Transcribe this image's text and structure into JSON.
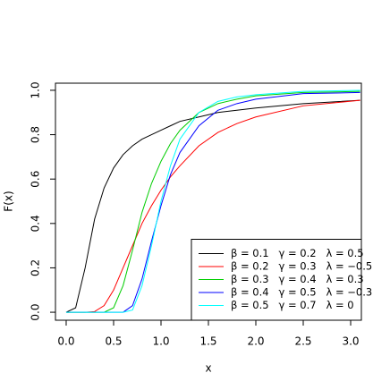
{
  "chart_data": {
    "type": "line",
    "x_label": "x",
    "y_label": "F(x)",
    "x": [
      0,
      0.1,
      0.2,
      0.3,
      0.4,
      0.5,
      0.6,
      0.7,
      0.8,
      0.9,
      1.0,
      1.1,
      1.2,
      1.4,
      1.6,
      1.8,
      2.0,
      2.5,
      3.1
    ],
    "series": [
      {
        "name": "β = 0.1   γ = 0.2   λ = 0.5",
        "color": "#000000",
        "values": [
          0,
          0.02,
          0.2,
          0.42,
          0.56,
          0.65,
          0.71,
          0.75,
          0.78,
          0.8,
          0.82,
          0.84,
          0.86,
          0.88,
          0.9,
          0.91,
          0.92,
          0.94,
          0.955
        ]
      },
      {
        "name": "β = 0.2   γ = 0.3   λ = −0.5",
        "color": "#ff0000",
        "values": [
          0,
          0,
          0,
          0.003,
          0.03,
          0.1,
          0.2,
          0.3,
          0.4,
          0.48,
          0.55,
          0.61,
          0.66,
          0.75,
          0.81,
          0.85,
          0.88,
          0.93,
          0.955
        ]
      },
      {
        "name": "β = 0.3   γ = 0.4   λ = 0.3",
        "color": "#00cd00",
        "values": [
          0,
          0,
          0,
          0,
          0,
          0.02,
          0.12,
          0.28,
          0.45,
          0.58,
          0.68,
          0.76,
          0.82,
          0.9,
          0.94,
          0.96,
          0.975,
          0.99,
          0.995
        ]
      },
      {
        "name": "β = 0.4   γ = 0.5   λ = −0.3",
        "color": "#0000ff",
        "values": [
          0,
          0,
          0,
          0,
          0,
          0,
          0,
          0.03,
          0.15,
          0.32,
          0.48,
          0.62,
          0.72,
          0.84,
          0.91,
          0.94,
          0.96,
          0.985,
          0.99
        ]
      },
      {
        "name": "β = 0.5   γ = 0.7   λ = 0",
        "color": "#00ffff",
        "values": [
          0,
          0,
          0,
          0,
          0,
          0,
          0,
          0.01,
          0.12,
          0.3,
          0.5,
          0.66,
          0.78,
          0.9,
          0.95,
          0.97,
          0.98,
          0.995,
          1.0
        ]
      }
    ],
    "xlim": [
      -0.113,
      3.113
    ],
    "ylim": [
      -0.036,
      1.032
    ],
    "xticks": [
      {
        "value": 0,
        "label": "0.0"
      },
      0.5,
      {
        "value": 1,
        "label": "1.0"
      },
      1.5,
      {
        "value": 2,
        "label": "2.0"
      },
      2.5,
      {
        "value": 3,
        "label": "3.0"
      }
    ],
    "yticks": [
      {
        "value": 0,
        "label": "0.0"
      },
      0.2,
      0.4,
      0.6,
      0.8,
      {
        "value": 1,
        "label": "1.0"
      }
    ],
    "grid": false,
    "legend": "bottom-right"
  }
}
